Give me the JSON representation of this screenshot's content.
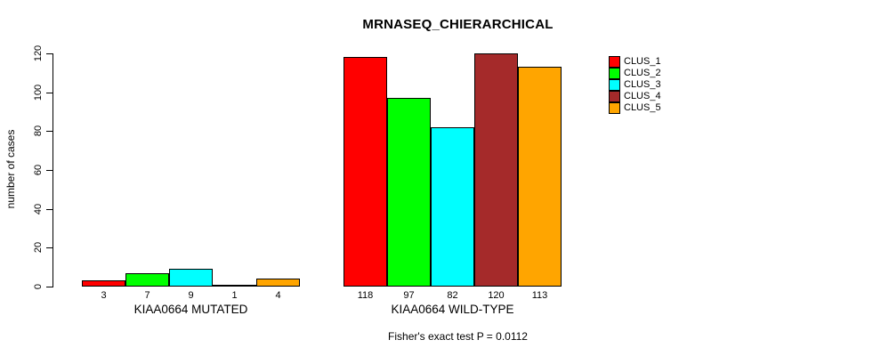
{
  "title": "MRNASEQ_CHIERARCHICAL",
  "y_axis_label": "number of cases",
  "footer_note": "Fisher's exact test P = 0.0112",
  "chart_data": {
    "type": "bar",
    "title": "MRNASEQ_CHIERARCHICAL",
    "ylabel": "number of cases",
    "xlabel": "",
    "ylim": [
      0,
      120
    ],
    "yticks": [
      0,
      20,
      40,
      60,
      80,
      100,
      120
    ],
    "grid": false,
    "legend_position": "top-right",
    "bar_value_labels": true,
    "annotation": "Fisher's exact test P = 0.0112",
    "categories": [
      "KIAA0664 MUTATED",
      "KIAA0664 WILD-TYPE"
    ],
    "series": [
      {
        "name": "CLUS_1",
        "color": "#ff0000",
        "values": [
          3,
          118
        ]
      },
      {
        "name": "CLUS_2",
        "color": "#00ff00",
        "values": [
          7,
          97
        ]
      },
      {
        "name": "CLUS_3",
        "color": "#00ffff",
        "values": [
          9,
          82
        ]
      },
      {
        "name": "CLUS_4",
        "color": "#a52a2a",
        "values": [
          1,
          120
        ]
      },
      {
        "name": "CLUS_5",
        "color": "#ffa500",
        "values": [
          4,
          113
        ]
      }
    ]
  }
}
